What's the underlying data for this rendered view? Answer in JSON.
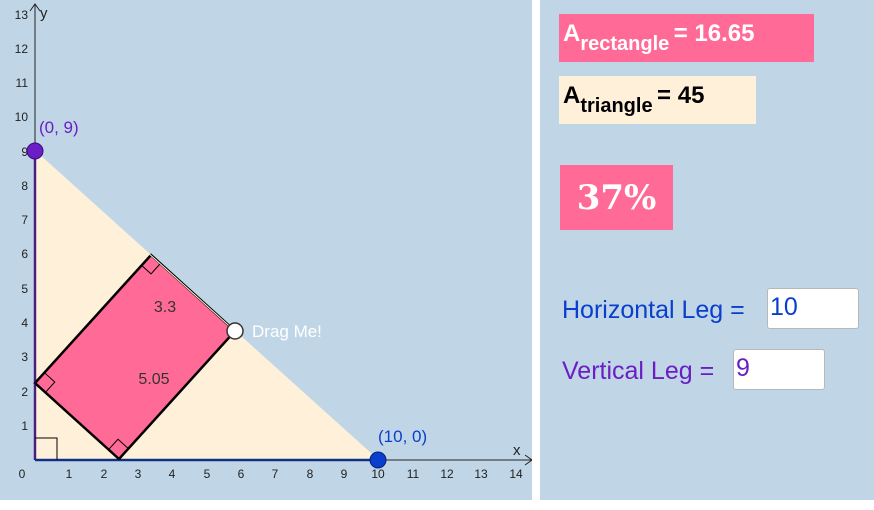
{
  "graph": {
    "x_axis_label": "x",
    "y_axis_label": "y",
    "x_ticks": [
      "0",
      "1",
      "2",
      "3",
      "4",
      "5",
      "6",
      "7",
      "8",
      "9",
      "10",
      "11",
      "12",
      "13",
      "14"
    ],
    "y_ticks": [
      "1",
      "2",
      "3",
      "4",
      "5",
      "6",
      "7",
      "8",
      "9",
      "10",
      "11",
      "12",
      "13"
    ],
    "point_top_label": "(0, 9)",
    "point_right_label": "(10, 0)",
    "drag_label": "Drag Me!",
    "rect_width_label": "3.3",
    "rect_length_label": "5.05"
  },
  "panel": {
    "rect_area": {
      "symbol": "A",
      "subscript": "rectangle",
      "value": "= 16.65"
    },
    "tri_area": {
      "symbol": "A",
      "subscript": "triangle",
      "value": "= 45"
    },
    "percent": "37%",
    "horizontal_leg": {
      "label": "Horizontal Leg =",
      "value": "10"
    },
    "vertical_leg": {
      "label": "Vertical Leg =",
      "value": "9"
    }
  },
  "colors": {
    "triangle_fill": "#fff0da",
    "rectangle_fill": "#ff6b96",
    "horizontal_leg": "#0a3ecc",
    "vertical_leg": "#6a1ec4",
    "background": "#c0d6e6"
  }
}
